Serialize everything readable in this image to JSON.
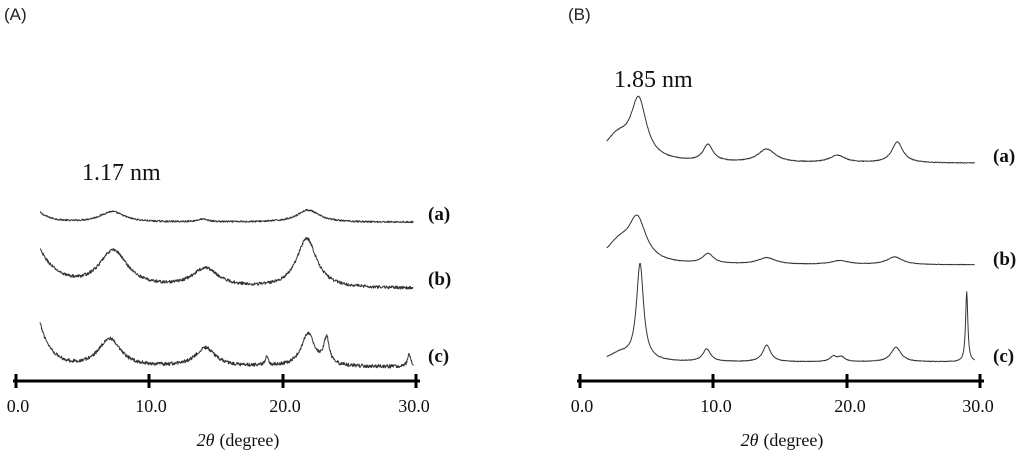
{
  "chart_data": [
    {
      "panel": "(A)",
      "type": "line",
      "xlabel_symbol": "2θ",
      "xlabel_unit": "(degree)",
      "xlim": [
        0,
        30
      ],
      "ticks": [
        0,
        10,
        20,
        30
      ],
      "tick_labels": [
        "0.0",
        "10.0",
        "20.0",
        "30.0"
      ],
      "annotation": "1.17 nm",
      "annotation_x": 7.2,
      "x_start": 1.8,
      "x_end": 29.8,
      "series": [
        {
          "name": "(a)",
          "baseline": 0.02,
          "rise": {
            "amp": 0.25,
            "decay": 0.9
          },
          "peaks": [
            {
              "x": 7.2,
              "h": 0.28,
              "w": 1.1
            },
            {
              "x": 14.0,
              "h": 0.07,
              "w": 0.5
            },
            {
              "x": 21.9,
              "h": 0.32,
              "w": 1.0
            }
          ],
          "noise": 0.022
        },
        {
          "name": "(b)",
          "baseline": 0.02,
          "rise": {
            "amp": 0.55,
            "decay": 1.4
          },
          "peaks": [
            {
              "x": 7.3,
              "h": 0.55,
              "w": 1.3
            },
            {
              "x": 14.2,
              "h": 0.28,
              "w": 1.2
            },
            {
              "x": 21.8,
              "h": 0.73,
              "w": 0.9
            }
          ],
          "noise": 0.022
        },
        {
          "name": "(c)",
          "baseline": 0.0,
          "rise": {
            "amp": 0.55,
            "decay": 0.9
          },
          "peaks": [
            {
              "x": 7.0,
              "h": 0.36,
              "w": 1.0
            },
            {
              "x": 14.2,
              "h": 0.24,
              "w": 0.9
            },
            {
              "x": 18.8,
              "h": 0.1,
              "w": 0.15
            },
            {
              "x": 21.9,
              "h": 0.42,
              "w": 0.6
            },
            {
              "x": 23.3,
              "h": 0.33,
              "w": 0.25
            },
            {
              "x": 29.5,
              "h": 0.16,
              "w": 0.15
            }
          ],
          "noise": 0.022
        }
      ]
    },
    {
      "panel": "(B)",
      "type": "line",
      "xlabel_symbol": "2θ",
      "xlabel_unit": "(degree)",
      "xlim": [
        0,
        30
      ],
      "ticks": [
        0,
        10,
        20,
        30
      ],
      "tick_labels": [
        "0.0",
        "10.0",
        "20.0",
        "30.0"
      ],
      "annotation": "1.85 nm",
      "annotation_x": 4.5,
      "x_start": 2.0,
      "x_end": 29.6,
      "series": [
        {
          "name": "(a)",
          "baseline": 0.03,
          "rise": {
            "amp": 0.0,
            "decay": 1.0
          },
          "peaks": [
            {
              "x": 4.4,
              "h": 0.95,
              "w": 0.7
            },
            {
              "x": 2.8,
              "h": 0.4,
              "w": 1.3
            },
            {
              "x": 9.6,
              "h": 0.28,
              "w": 0.45
            },
            {
              "x": 14.0,
              "h": 0.22,
              "w": 0.8
            },
            {
              "x": 19.3,
              "h": 0.12,
              "w": 0.7
            },
            {
              "x": 23.8,
              "h": 0.35,
              "w": 0.5
            }
          ],
          "noise": 0.006
        },
        {
          "name": "(b)",
          "baseline": 0.02,
          "rise": {
            "amp": 0.0,
            "decay": 1.0
          },
          "peaks": [
            {
              "x": 4.3,
              "h": 0.75,
              "w": 0.8
            },
            {
              "x": 2.9,
              "h": 0.35,
              "w": 1.2
            },
            {
              "x": 9.6,
              "h": 0.18,
              "w": 0.5
            },
            {
              "x": 14.0,
              "h": 0.12,
              "w": 0.8
            },
            {
              "x": 19.5,
              "h": 0.07,
              "w": 0.8
            },
            {
              "x": 23.6,
              "h": 0.14,
              "w": 0.7
            }
          ],
          "noise": 0.005
        },
        {
          "name": "(c)",
          "baseline": 0.02,
          "rise": {
            "amp": 0.0,
            "decay": 1.0
          },
          "peaks": [
            {
              "x": 4.5,
              "h": 1.85,
              "w": 0.32
            },
            {
              "x": 3.0,
              "h": 0.15,
              "w": 1.0
            },
            {
              "x": 9.5,
              "h": 0.24,
              "w": 0.35
            },
            {
              "x": 14.0,
              "h": 0.32,
              "w": 0.35
            },
            {
              "x": 19.0,
              "h": 0.1,
              "w": 0.3
            },
            {
              "x": 19.6,
              "h": 0.09,
              "w": 0.3
            },
            {
              "x": 23.7,
              "h": 0.28,
              "w": 0.45
            },
            {
              "x": 29.0,
              "h": 1.35,
              "w": 0.1
            }
          ],
          "noise": 0.006
        }
      ]
    }
  ]
}
